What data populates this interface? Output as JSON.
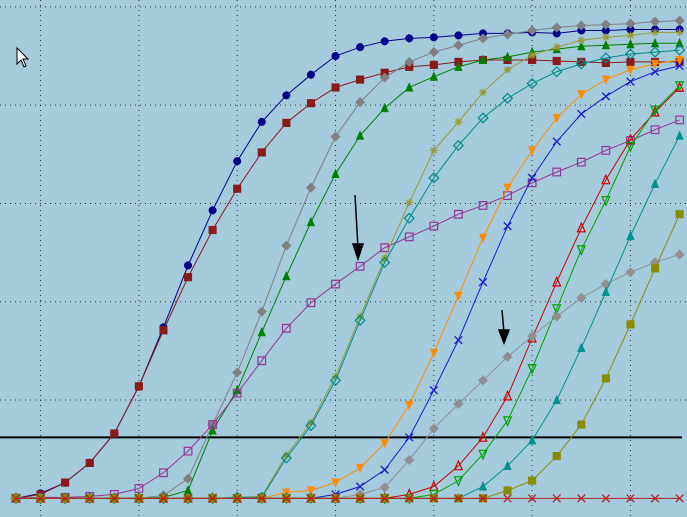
{
  "chart_data": {
    "type": "line",
    "x": [
      0,
      1,
      2,
      3,
      4,
      5,
      6,
      7,
      8,
      9,
      10,
      11,
      12,
      13,
      14,
      15,
      16,
      17,
      18,
      19,
      20,
      21,
      22,
      23,
      24,
      25,
      26,
      27
    ],
    "xlim": [
      -0.65,
      27.3
    ],
    "xticks": [
      1,
      5,
      9,
      13,
      17,
      21,
      25
    ],
    "ylim": [
      -0.19,
      5.07
    ],
    "yticks": [
      1,
      2,
      3,
      4,
      5
    ],
    "grid": true,
    "threshold": 0.62,
    "threshold_color": "#000000",
    "series": [
      {
        "color": "#00008b",
        "marker": "circle",
        "values": [
          0,
          0.05,
          0.16,
          0.36,
          0.66,
          1.14,
          1.74,
          2.37,
          2.93,
          3.43,
          3.83,
          4.1,
          4.31,
          4.5,
          4.59,
          4.65,
          4.68,
          4.69,
          4.71,
          4.73,
          4.73,
          4.74,
          4.73,
          4.76,
          4.76,
          4.77,
          4.77,
          4.77
        ]
      },
      {
        "color": "#8b1a1a",
        "marker": "square",
        "values": [
          0,
          0.04,
          0.16,
          0.36,
          0.66,
          1.14,
          1.71,
          2.25,
          2.73,
          3.15,
          3.52,
          3.82,
          4.02,
          4.18,
          4.26,
          4.33,
          4.39,
          4.41,
          4.44,
          4.46,
          4.46,
          4.46,
          4.45,
          4.44,
          4.43,
          4.44,
          4.44,
          4.44
        ]
      },
      {
        "color": "#808080",
        "marker": "diamond",
        "values": [
          0,
          0,
          0,
          0,
          0,
          0,
          0.03,
          0.2,
          0.75,
          1.28,
          1.9,
          2.57,
          3.16,
          3.68,
          4.03,
          4.28,
          4.44,
          4.54,
          4.61,
          4.68,
          4.72,
          4.76,
          4.79,
          4.81,
          4.82,
          4.83,
          4.85,
          4.86
        ]
      },
      {
        "color": "#008000",
        "marker": "triangle",
        "values": [
          0,
          0,
          0,
          0,
          0,
          0,
          0.01,
          0.08,
          0.69,
          1.1,
          1.69,
          2.26,
          2.81,
          3.3,
          3.69,
          3.97,
          4.18,
          4.29,
          4.39,
          4.46,
          4.49,
          4.54,
          4.57,
          4.6,
          4.61,
          4.62,
          4.63,
          4.63
        ]
      },
      {
        "color": "#993399",
        "marker": "square-open",
        "values": [
          0,
          0.01,
          0.01,
          0.02,
          0.04,
          0.1,
          0.26,
          0.48,
          0.75,
          1.07,
          1.4,
          1.73,
          1.99,
          2.18,
          2.36,
          2.55,
          2.66,
          2.77,
          2.89,
          2.98,
          3.08,
          3.21,
          3.32,
          3.42,
          3.54,
          3.64,
          3.75,
          3.85
        ]
      },
      {
        "color": "#9a9a33",
        "marker": "star",
        "values": [
          0,
          0,
          0,
          0,
          0,
          0,
          0,
          0,
          0,
          0.01,
          0.02,
          0.44,
          0.77,
          1.24,
          1.85,
          2.44,
          3.01,
          3.54,
          3.83,
          4.13,
          4.36,
          4.51,
          4.59,
          4.66,
          4.69,
          4.71,
          4.74,
          4.74
        ]
      },
      {
        "color": "#008b8b",
        "marker": "diamond-open",
        "values": [
          0,
          0,
          0,
          0,
          0,
          0,
          0,
          0,
          0,
          0.01,
          0.01,
          0.41,
          0.74,
          1.2,
          1.81,
          2.4,
          2.85,
          3.26,
          3.59,
          3.87,
          4.07,
          4.22,
          4.34,
          4.42,
          4.48,
          4.52,
          4.54,
          4.56
        ]
      },
      {
        "color": "#ff8c00",
        "marker": "triangle-down",
        "values": [
          0,
          0,
          0,
          0,
          0,
          0,
          0,
          0,
          0,
          0,
          0,
          0.06,
          0.08,
          0.16,
          0.31,
          0.56,
          0.95,
          1.48,
          2.06,
          2.65,
          3.16,
          3.54,
          3.87,
          4.11,
          4.26,
          4.36,
          4.42,
          4.46
        ]
      },
      {
        "color": "#1a1acd",
        "marker": "x",
        "values": [
          0,
          0,
          0,
          0,
          0,
          0,
          0,
          0,
          0,
          0,
          0,
          0,
          0,
          0.04,
          0.12,
          0.29,
          0.62,
          1.1,
          1.61,
          2.2,
          2.77,
          3.26,
          3.63,
          3.91,
          4.09,
          4.24,
          4.34,
          4.4
        ]
      },
      {
        "color": "#cc0000",
        "marker": "triangle-open",
        "values": [
          0,
          0,
          0,
          0,
          0,
          0,
          0,
          0,
          0,
          0,
          0,
          0,
          0,
          0,
          0,
          0,
          0.04,
          0.12,
          0.33,
          0.62,
          1.04,
          1.63,
          2.2,
          2.75,
          3.24,
          3.65,
          3.93,
          4.18
        ]
      },
      {
        "color": "#00a000",
        "marker": "triangle-down-open",
        "values": [
          0,
          0,
          0,
          0,
          0,
          0,
          0,
          0,
          0,
          0,
          0,
          0,
          0,
          0,
          0,
          0,
          0,
          0.04,
          0.18,
          0.45,
          0.79,
          1.32,
          1.93,
          2.53,
          3.03,
          3.58,
          3.95,
          4.2
        ]
      },
      {
        "color": "#909090",
        "marker": "diamond",
        "values": [
          0,
          0,
          0,
          0,
          0,
          0,
          0,
          0,
          0,
          0,
          0,
          0,
          0,
          0,
          0.04,
          0.11,
          0.39,
          0.71,
          0.96,
          1.2,
          1.44,
          1.65,
          1.85,
          2.04,
          2.18,
          2.3,
          2.4,
          2.48
        ]
      },
      {
        "color": "#009090",
        "marker": "triangle",
        "values": [
          0,
          0,
          0,
          0,
          0,
          0,
          0,
          0,
          0,
          0,
          0,
          0,
          0,
          0,
          0,
          0,
          0,
          0,
          0,
          0.12,
          0.33,
          0.59,
          1.0,
          1.53,
          2.1,
          2.67,
          3.2,
          3.69
        ]
      },
      {
        "color": "#8b8b00",
        "marker": "square",
        "values": [
          0,
          0,
          0,
          0,
          0,
          0,
          0,
          0,
          0,
          0,
          0,
          0,
          0,
          0,
          0,
          0,
          0,
          0,
          0,
          0,
          0.08,
          0.18,
          0.43,
          0.75,
          1.22,
          1.77,
          2.34,
          2.89
        ]
      },
      {
        "color": "#b22222",
        "marker": "x",
        "values": [
          0,
          0,
          0,
          0,
          0,
          0,
          0,
          0,
          0,
          0,
          0,
          0,
          0,
          0,
          0,
          0,
          0,
          0,
          0,
          0,
          0,
          0,
          0,
          0,
          0,
          0,
          0,
          0
        ]
      }
    ]
  }
}
